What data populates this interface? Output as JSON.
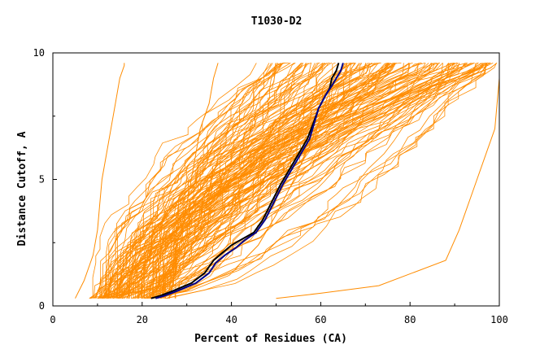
{
  "chart_data": {
    "type": "line",
    "title": "T1030-D2",
    "xlabel": "Percent of Residues (CA)",
    "ylabel": "Distance Cutoff, A",
    "xlim": [
      0,
      100
    ],
    "ylim": [
      0,
      10
    ],
    "xticks": [
      "0",
      "20",
      "40",
      "60",
      "80",
      "100"
    ],
    "yticks": [
      "0",
      "5",
      "10"
    ],
    "grid": false,
    "colors": {
      "models": "#ff8c00",
      "highlight_dark": "#000000",
      "highlight_blue": "#00008b"
    },
    "reference_curves": [
      {
        "x": [
          5,
          7,
          9,
          10,
          10.5,
          11,
          12,
          13,
          14,
          15,
          16,
          16
        ],
        "y": [
          0.3,
          1,
          2,
          3,
          4,
          5,
          6,
          7,
          8,
          9,
          9.5,
          9.6
        ]
      },
      {
        "x": [
          26,
          27,
          28,
          29,
          30,
          31,
          32,
          33,
          35,
          36,
          37
        ],
        "y": [
          0.3,
          1,
          2,
          3,
          4,
          5,
          6,
          7,
          8,
          9,
          9.6
        ]
      },
      {
        "x": [
          50,
          60,
          73,
          88,
          91,
          94,
          97,
          99,
          100,
          100
        ],
        "y": [
          0.3,
          0.5,
          0.8,
          1.8,
          3,
          4.5,
          6,
          7,
          9,
          9.6
        ]
      },
      {
        "x": [
          22,
          30,
          35,
          41,
          46,
          50,
          54,
          58,
          61,
          63,
          64
        ],
        "y": [
          0.3,
          0.6,
          1,
          1.5,
          2.4,
          3.6,
          5,
          6.5,
          8,
          9,
          9.6
        ]
      }
    ],
    "highlight_series": [
      {
        "color": "#000000",
        "x": [
          22,
          24,
          27,
          31,
          34,
          36,
          38,
          40,
          42,
          45,
          47,
          49,
          51,
          53,
          55,
          57,
          58.5,
          59.5,
          61,
          62,
          62.5,
          63.5,
          64
        ],
        "y": [
          0.3,
          0.4,
          0.6,
          0.9,
          1.3,
          1.8,
          2.1,
          2.4,
          2.6,
          2.9,
          3.4,
          4.1,
          4.8,
          5.4,
          6.0,
          6.6,
          7.3,
          7.8,
          8.3,
          8.6,
          9.0,
          9.3,
          9.6
        ]
      },
      {
        "color": "#00008b",
        "x": [
          23,
          25,
          28,
          32,
          35,
          36.5,
          38.5,
          41,
          43,
          45.5,
          47.5,
          49.5,
          51.5,
          53.5,
          55.5,
          57.5,
          58.5,
          59.5,
          61,
          62.5,
          63.5,
          64.5,
          65
        ],
        "y": [
          0.3,
          0.4,
          0.6,
          0.9,
          1.3,
          1.7,
          2.0,
          2.3,
          2.6,
          2.9,
          3.4,
          4.1,
          4.8,
          5.4,
          6.0,
          6.6,
          7.2,
          7.8,
          8.3,
          8.7,
          9.0,
          9.3,
          9.6
        ]
      }
    ]
  }
}
